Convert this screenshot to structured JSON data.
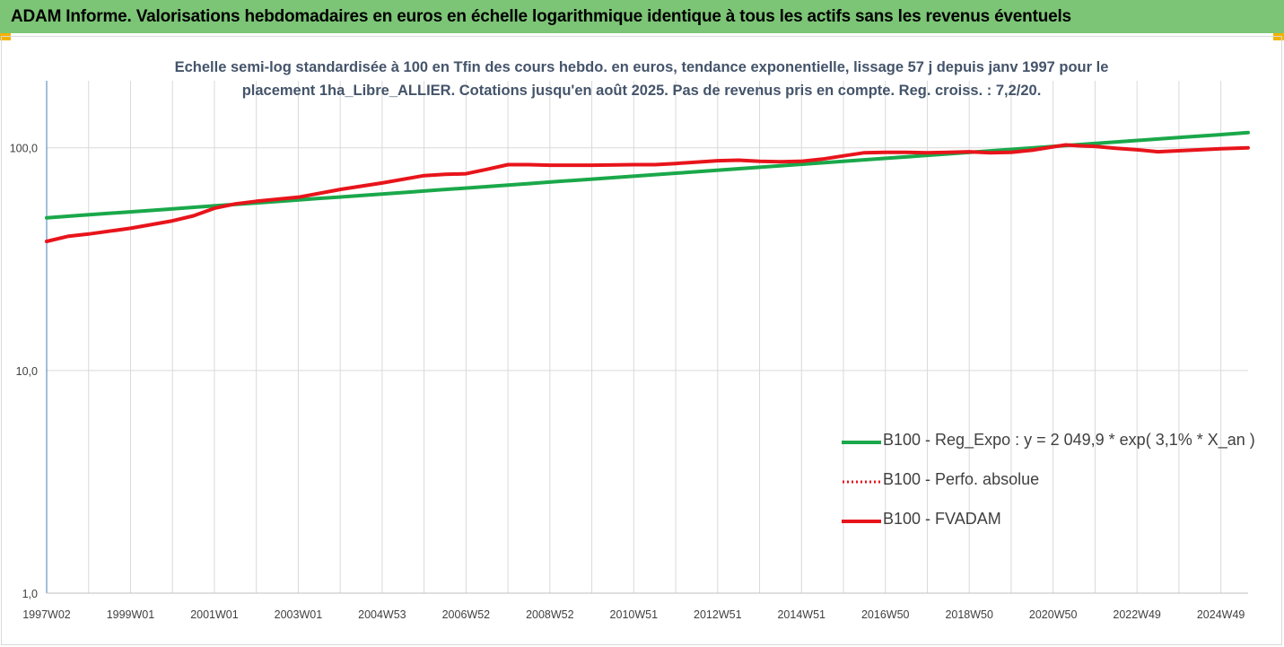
{
  "banner": {
    "title": "ADAM Informe. Valorisations hebdomadaires en euros en échelle logarithmique identique à tous les actifs sans les revenus éventuels"
  },
  "colors": {
    "banner": "#7cc576",
    "corner": "#f2b200",
    "regression": "#1aa84a",
    "fvadam": "#e8141b",
    "perfo": "#e8141b",
    "axis": "#4a7fb5",
    "grid": "#d9d9d9",
    "subtitle": "#44546a"
  },
  "chart_data": {
    "type": "line",
    "title": "Echelle semi-log standardisée à 100 en Tfin des cours hebdo. en euros, tendance exponentielle, lissage 57 j depuis janv 1997 pour le placement 1ha_Libre_ALLIER. Cotations jusqu'en août 2025. Pas de revenus pris en compte. Reg. croiss. : 7,2/20.",
    "title_lines": [
      "Echelle semi-log standardisée à 100 en Tfin des cours hebdo. en euros, tendance exponentielle, lissage 57 j depuis janv 1997 pour le",
      "placement 1ha_Libre_ALLIER. Cotations jusqu'en août 2025. Pas de revenus pris en compte. Reg. croiss. : 7,2/20."
    ],
    "y_scale": "log",
    "ylim": [
      1,
      200
    ],
    "y_ticks": [
      {
        "value": 1,
        "label": "1,0"
      },
      {
        "value": 10,
        "label": "10,0"
      },
      {
        "value": 100,
        "label": "100,0"
      }
    ],
    "x_range": [
      1997.0,
      2025.65
    ],
    "x_ticks": [
      {
        "x": 1997.0,
        "label": "1997W02"
      },
      {
        "x": 1999.0,
        "label": "1999W01"
      },
      {
        "x": 2001.0,
        "label": "2001W01"
      },
      {
        "x": 2003.0,
        "label": "2003W01"
      },
      {
        "x": 2005.0,
        "label": "2004W53"
      },
      {
        "x": 2007.0,
        "label": "2006W52"
      },
      {
        "x": 2009.0,
        "label": "2008W52"
      },
      {
        "x": 2011.0,
        "label": "2010W51"
      },
      {
        "x": 2013.0,
        "label": "2012W51"
      },
      {
        "x": 2015.0,
        "label": "2014W51"
      },
      {
        "x": 2017.0,
        "label": "2016W50"
      },
      {
        "x": 2019.0,
        "label": "2018W50"
      },
      {
        "x": 2021.0,
        "label": "2020W50"
      },
      {
        "x": 2023.0,
        "label": "2022W49"
      },
      {
        "x": 2025.0,
        "label": "2024W49"
      }
    ],
    "grid": "vertical",
    "legend_position": "bottom-right",
    "series": [
      {
        "name": "B100 - Reg_Expo : y = 2 049,9 * exp( 3,1% *  X_an )",
        "style": "solid",
        "x": [
          1997.0,
          2025.65
        ],
        "y": [
          48.5,
          117
        ]
      },
      {
        "name": "B100 - Perfo. absolue",
        "style": "dotted",
        "x": [],
        "y": []
      },
      {
        "name": "B100 - FVADAM",
        "style": "solid",
        "x": [
          1997.0,
          1997.5,
          1998.0,
          1999.0,
          2000.0,
          2000.5,
          2001.0,
          2001.5,
          2002.0,
          2003.0,
          2004.0,
          2005.0,
          2006.0,
          2006.5,
          2007.0,
          2007.5,
          2008.0,
          2008.5,
          2009.0,
          2010.0,
          2011.0,
          2011.5,
          2012.0,
          2013.0,
          2013.5,
          2014.0,
          2014.5,
          2015.0,
          2015.5,
          2016.0,
          2016.5,
          2017.0,
          2017.5,
          2018.0,
          2018.5,
          2019.0,
          2019.5,
          2020.0,
          2020.5,
          2021.0,
          2021.3,
          2021.7,
          2022.0,
          2022.5,
          2023.0,
          2023.5,
          2024.0,
          2024.5,
          2025.0,
          2025.65
        ],
        "y": [
          38,
          40,
          41,
          43.5,
          47,
          49.5,
          53.5,
          56,
          57.5,
          60,
          65,
          69.5,
          75,
          76,
          76.5,
          80,
          84,
          84,
          83.5,
          83.5,
          84,
          84,
          85,
          87.5,
          88,
          87,
          86.5,
          87,
          89,
          92,
          95,
          95.5,
          95.5,
          95,
          95.5,
          96,
          95,
          95.5,
          97.5,
          101,
          103,
          102,
          101.5,
          99.5,
          98,
          96,
          97,
          98,
          99,
          100
        ]
      }
    ]
  }
}
